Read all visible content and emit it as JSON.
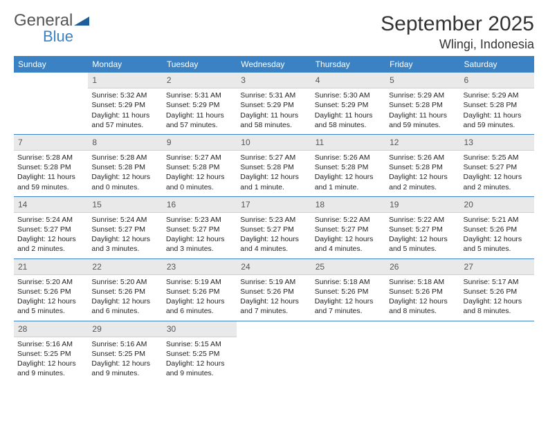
{
  "brand": {
    "name1": "General",
    "name2": "Blue",
    "tri_color": "#1f5f99"
  },
  "title": {
    "month": "September 2025",
    "location": "Wlingi, Indonesia"
  },
  "colors": {
    "header_bg": "#3b82c4",
    "header_fg": "#ffffff",
    "daynum_bg": "#e9e9e9",
    "rule": "#3b82c4"
  },
  "weekdays": [
    "Sunday",
    "Monday",
    "Tuesday",
    "Wednesday",
    "Thursday",
    "Friday",
    "Saturday"
  ],
  "weeks": [
    [
      null,
      {
        "n": "1",
        "sr": "5:32 AM",
        "ss": "5:29 PM",
        "dl": "11 hours and 57 minutes."
      },
      {
        "n": "2",
        "sr": "5:31 AM",
        "ss": "5:29 PM",
        "dl": "11 hours and 57 minutes."
      },
      {
        "n": "3",
        "sr": "5:31 AM",
        "ss": "5:29 PM",
        "dl": "11 hours and 58 minutes."
      },
      {
        "n": "4",
        "sr": "5:30 AM",
        "ss": "5:29 PM",
        "dl": "11 hours and 58 minutes."
      },
      {
        "n": "5",
        "sr": "5:29 AM",
        "ss": "5:28 PM",
        "dl": "11 hours and 59 minutes."
      },
      {
        "n": "6",
        "sr": "5:29 AM",
        "ss": "5:28 PM",
        "dl": "11 hours and 59 minutes."
      }
    ],
    [
      {
        "n": "7",
        "sr": "5:28 AM",
        "ss": "5:28 PM",
        "dl": "11 hours and 59 minutes."
      },
      {
        "n": "8",
        "sr": "5:28 AM",
        "ss": "5:28 PM",
        "dl": "12 hours and 0 minutes."
      },
      {
        "n": "9",
        "sr": "5:27 AM",
        "ss": "5:28 PM",
        "dl": "12 hours and 0 minutes."
      },
      {
        "n": "10",
        "sr": "5:27 AM",
        "ss": "5:28 PM",
        "dl": "12 hours and 1 minute."
      },
      {
        "n": "11",
        "sr": "5:26 AM",
        "ss": "5:28 PM",
        "dl": "12 hours and 1 minute."
      },
      {
        "n": "12",
        "sr": "5:26 AM",
        "ss": "5:28 PM",
        "dl": "12 hours and 2 minutes."
      },
      {
        "n": "13",
        "sr": "5:25 AM",
        "ss": "5:27 PM",
        "dl": "12 hours and 2 minutes."
      }
    ],
    [
      {
        "n": "14",
        "sr": "5:24 AM",
        "ss": "5:27 PM",
        "dl": "12 hours and 2 minutes."
      },
      {
        "n": "15",
        "sr": "5:24 AM",
        "ss": "5:27 PM",
        "dl": "12 hours and 3 minutes."
      },
      {
        "n": "16",
        "sr": "5:23 AM",
        "ss": "5:27 PM",
        "dl": "12 hours and 3 minutes."
      },
      {
        "n": "17",
        "sr": "5:23 AM",
        "ss": "5:27 PM",
        "dl": "12 hours and 4 minutes."
      },
      {
        "n": "18",
        "sr": "5:22 AM",
        "ss": "5:27 PM",
        "dl": "12 hours and 4 minutes."
      },
      {
        "n": "19",
        "sr": "5:22 AM",
        "ss": "5:27 PM",
        "dl": "12 hours and 5 minutes."
      },
      {
        "n": "20",
        "sr": "5:21 AM",
        "ss": "5:26 PM",
        "dl": "12 hours and 5 minutes."
      }
    ],
    [
      {
        "n": "21",
        "sr": "5:20 AM",
        "ss": "5:26 PM",
        "dl": "12 hours and 5 minutes."
      },
      {
        "n": "22",
        "sr": "5:20 AM",
        "ss": "5:26 PM",
        "dl": "12 hours and 6 minutes."
      },
      {
        "n": "23",
        "sr": "5:19 AM",
        "ss": "5:26 PM",
        "dl": "12 hours and 6 minutes."
      },
      {
        "n": "24",
        "sr": "5:19 AM",
        "ss": "5:26 PM",
        "dl": "12 hours and 7 minutes."
      },
      {
        "n": "25",
        "sr": "5:18 AM",
        "ss": "5:26 PM",
        "dl": "12 hours and 7 minutes."
      },
      {
        "n": "26",
        "sr": "5:18 AM",
        "ss": "5:26 PM",
        "dl": "12 hours and 8 minutes."
      },
      {
        "n": "27",
        "sr": "5:17 AM",
        "ss": "5:26 PM",
        "dl": "12 hours and 8 minutes."
      }
    ],
    [
      {
        "n": "28",
        "sr": "5:16 AM",
        "ss": "5:25 PM",
        "dl": "12 hours and 9 minutes."
      },
      {
        "n": "29",
        "sr": "5:16 AM",
        "ss": "5:25 PM",
        "dl": "12 hours and 9 minutes."
      },
      {
        "n": "30",
        "sr": "5:15 AM",
        "ss": "5:25 PM",
        "dl": "12 hours and 9 minutes."
      },
      null,
      null,
      null,
      null
    ]
  ],
  "labels": {
    "sunrise": "Sunrise:",
    "sunset": "Sunset:",
    "daylight": "Daylight:"
  }
}
